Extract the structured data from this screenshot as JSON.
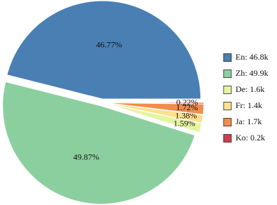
{
  "chart_data": {
    "type": "pie",
    "categories": [
      "En",
      "Zh",
      "De",
      "Fr",
      "Ja",
      "Ko"
    ],
    "values": [
      46.77,
      49.87,
      1.59,
      1.38,
      1.72,
      0.22
    ],
    "value_labels": [
      "46.77%",
      "49.87%",
      "1.59%",
      "1.38%",
      "1.72%",
      "0.22%"
    ],
    "legend_labels": [
      "En: 46.8k",
      "Zh: 49.9k",
      "De: 1.6k",
      "Fr: 1.4k",
      "Ja: 1.7k",
      "Ko: 0.2k"
    ],
    "colors": [
      "#4a7fb4",
      "#8ccf9f",
      "#e5f59f",
      "#fde08b",
      "#f18c4b",
      "#d33c4e"
    ],
    "legend": "right"
  }
}
